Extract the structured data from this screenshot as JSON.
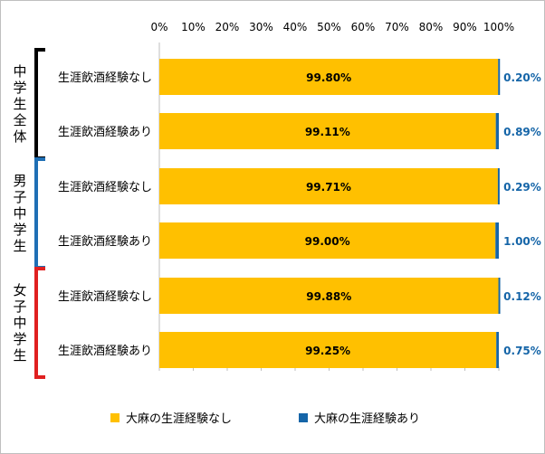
{
  "chart_data": {
    "type": "bar",
    "orientation": "horizontal",
    "stacked": true,
    "percent_scale": true,
    "xlim": [
      0,
      100
    ],
    "x_ticks": [
      "0%",
      "10%",
      "20%",
      "30%",
      "40%",
      "50%",
      "60%",
      "70%",
      "80%",
      "90%",
      "100%"
    ],
    "grid": false,
    "groups": [
      {
        "label": "中学生全体",
        "color": "#000000",
        "categories": [
          "生涯飲酒経験なし",
          "生涯飲酒経験あり"
        ]
      },
      {
        "label": "男子中学生",
        "color": "#1f6fb5",
        "categories": [
          "生涯飲酒経験なし",
          "生涯飲酒経験あり"
        ]
      },
      {
        "label": "女子中学生",
        "color": "#e02020",
        "categories": [
          "生涯飲酒経験なし",
          "生涯飲酒経験あり"
        ]
      }
    ],
    "series": [
      {
        "name": "大麻の生涯経験なし",
        "color": "#ffc000",
        "values": [
          99.8,
          99.11,
          99.71,
          99.0,
          99.88,
          99.25
        ],
        "labels": [
          "99.80%",
          "99.11%",
          "99.71%",
          "99.00%",
          "99.88%",
          "99.25%"
        ]
      },
      {
        "name": "大麻の生涯経験あり",
        "color": "#1565a8",
        "values": [
          0.2,
          0.89,
          0.29,
          1.0,
          0.12,
          0.75
        ],
        "labels": [
          "0.20%",
          "0.89%",
          "0.29%",
          "1.00%",
          "0.12%",
          "0.75%"
        ]
      }
    ],
    "legend_position": "bottom"
  }
}
